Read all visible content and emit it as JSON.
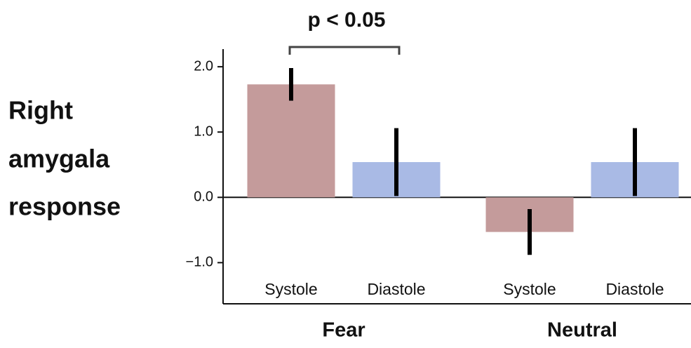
{
  "chart_data": {
    "type": "bar",
    "ylabel": [
      "Right",
      "amygala",
      "response"
    ],
    "annotation": "p < 0.05",
    "groups": [
      "Fear",
      "Neutral"
    ],
    "series": [
      {
        "name": "Systole",
        "color": "#c49b9b",
        "values": [
          1.73,
          -0.53
        ],
        "errors": [
          0.25,
          0.35
        ]
      },
      {
        "name": "Diastole",
        "color": "#a9bae5",
        "values": [
          0.54,
          0.54
        ],
        "errors": [
          0.52,
          0.52
        ]
      }
    ],
    "ylim": [
      -1.63,
      2.27
    ],
    "yticks": [
      {
        "value": 2,
        "label": "2.0"
      },
      {
        "value": 1,
        "label": "1.0"
      },
      {
        "value": 0,
        "label": "0.0"
      },
      {
        "value": -1,
        "label": "−1.0"
      }
    ]
  }
}
